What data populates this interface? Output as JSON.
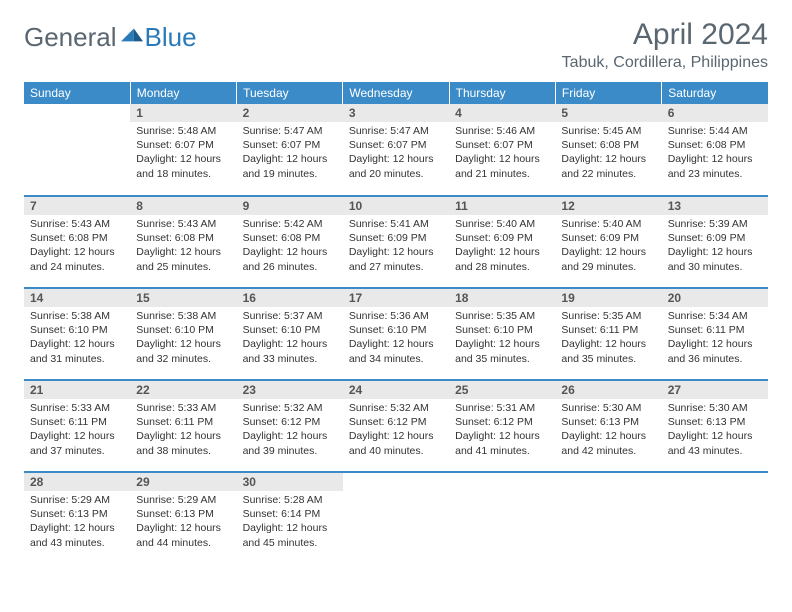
{
  "logo": {
    "text1": "General",
    "text2": "Blue"
  },
  "title": "April 2024",
  "location": "Tabuk, Cordillera, Philippines",
  "colors": {
    "header_bg": "#3b8bc9",
    "header_text": "#ffffff",
    "daynum_bg": "#e9e9e9",
    "border": "#3b8bc9",
    "title_color": "#5a6670",
    "logo_blue": "#2a7ab8"
  },
  "day_headers": [
    "Sunday",
    "Monday",
    "Tuesday",
    "Wednesday",
    "Thursday",
    "Friday",
    "Saturday"
  ],
  "first_weekday_index": 1,
  "days_in_month": 30,
  "days": {
    "1": {
      "sunrise": "5:48 AM",
      "sunset": "6:07 PM",
      "daylight": "12 hours and 18 minutes."
    },
    "2": {
      "sunrise": "5:47 AM",
      "sunset": "6:07 PM",
      "daylight": "12 hours and 19 minutes."
    },
    "3": {
      "sunrise": "5:47 AM",
      "sunset": "6:07 PM",
      "daylight": "12 hours and 20 minutes."
    },
    "4": {
      "sunrise": "5:46 AM",
      "sunset": "6:07 PM",
      "daylight": "12 hours and 21 minutes."
    },
    "5": {
      "sunrise": "5:45 AM",
      "sunset": "6:08 PM",
      "daylight": "12 hours and 22 minutes."
    },
    "6": {
      "sunrise": "5:44 AM",
      "sunset": "6:08 PM",
      "daylight": "12 hours and 23 minutes."
    },
    "7": {
      "sunrise": "5:43 AM",
      "sunset": "6:08 PM",
      "daylight": "12 hours and 24 minutes."
    },
    "8": {
      "sunrise": "5:43 AM",
      "sunset": "6:08 PM",
      "daylight": "12 hours and 25 minutes."
    },
    "9": {
      "sunrise": "5:42 AM",
      "sunset": "6:08 PM",
      "daylight": "12 hours and 26 minutes."
    },
    "10": {
      "sunrise": "5:41 AM",
      "sunset": "6:09 PM",
      "daylight": "12 hours and 27 minutes."
    },
    "11": {
      "sunrise": "5:40 AM",
      "sunset": "6:09 PM",
      "daylight": "12 hours and 28 minutes."
    },
    "12": {
      "sunrise": "5:40 AM",
      "sunset": "6:09 PM",
      "daylight": "12 hours and 29 minutes."
    },
    "13": {
      "sunrise": "5:39 AM",
      "sunset": "6:09 PM",
      "daylight": "12 hours and 30 minutes."
    },
    "14": {
      "sunrise": "5:38 AM",
      "sunset": "6:10 PM",
      "daylight": "12 hours and 31 minutes."
    },
    "15": {
      "sunrise": "5:38 AM",
      "sunset": "6:10 PM",
      "daylight": "12 hours and 32 minutes."
    },
    "16": {
      "sunrise": "5:37 AM",
      "sunset": "6:10 PM",
      "daylight": "12 hours and 33 minutes."
    },
    "17": {
      "sunrise": "5:36 AM",
      "sunset": "6:10 PM",
      "daylight": "12 hours and 34 minutes."
    },
    "18": {
      "sunrise": "5:35 AM",
      "sunset": "6:10 PM",
      "daylight": "12 hours and 35 minutes."
    },
    "19": {
      "sunrise": "5:35 AM",
      "sunset": "6:11 PM",
      "daylight": "12 hours and 35 minutes."
    },
    "20": {
      "sunrise": "5:34 AM",
      "sunset": "6:11 PM",
      "daylight": "12 hours and 36 minutes."
    },
    "21": {
      "sunrise": "5:33 AM",
      "sunset": "6:11 PM",
      "daylight": "12 hours and 37 minutes."
    },
    "22": {
      "sunrise": "5:33 AM",
      "sunset": "6:11 PM",
      "daylight": "12 hours and 38 minutes."
    },
    "23": {
      "sunrise": "5:32 AM",
      "sunset": "6:12 PM",
      "daylight": "12 hours and 39 minutes."
    },
    "24": {
      "sunrise": "5:32 AM",
      "sunset": "6:12 PM",
      "daylight": "12 hours and 40 minutes."
    },
    "25": {
      "sunrise": "5:31 AM",
      "sunset": "6:12 PM",
      "daylight": "12 hours and 41 minutes."
    },
    "26": {
      "sunrise": "5:30 AM",
      "sunset": "6:13 PM",
      "daylight": "12 hours and 42 minutes."
    },
    "27": {
      "sunrise": "5:30 AM",
      "sunset": "6:13 PM",
      "daylight": "12 hours and 43 minutes."
    },
    "28": {
      "sunrise": "5:29 AM",
      "sunset": "6:13 PM",
      "daylight": "12 hours and 43 minutes."
    },
    "29": {
      "sunrise": "5:29 AM",
      "sunset": "6:13 PM",
      "daylight": "12 hours and 44 minutes."
    },
    "30": {
      "sunrise": "5:28 AM",
      "sunset": "6:14 PM",
      "daylight": "12 hours and 45 minutes."
    }
  },
  "labels": {
    "sunrise_prefix": "Sunrise: ",
    "sunset_prefix": "Sunset: ",
    "daylight_prefix": "Daylight: "
  }
}
